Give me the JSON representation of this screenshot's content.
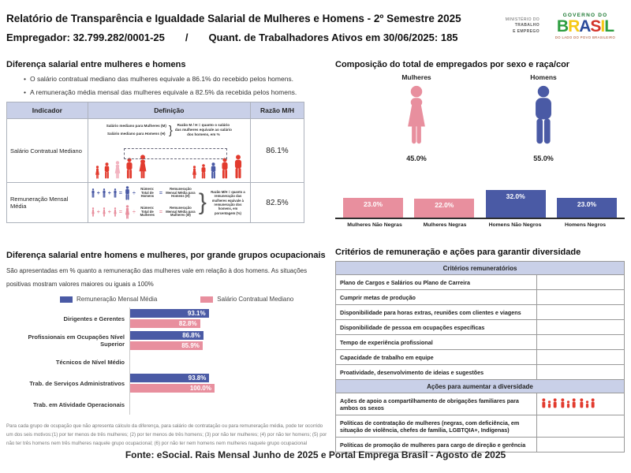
{
  "header": {
    "title": "Relatório de Transparência e Igualdade Salarial de Mulheres e Homens - 2º Semestre 2025",
    "employer": "Empregador: 32.799.282/0001-25",
    "slash": "/",
    "active_workers": "Quant. de Trabalhadores Ativos em 30/06/2025: 185",
    "ministry_lines": [
      "MINISTÉRIO DO",
      "TRABALHO",
      "E EMPREGO"
    ],
    "gov": {
      "top": "GOVERNO DO",
      "name": "BRASIL",
      "tagline": "DO LADO DO POVO BRASILEIRO",
      "letter_colors": [
        "#2E9E41",
        "#F6C915",
        "#2B4B9B",
        "#D3342A",
        "#F6C915",
        "#2E9E41"
      ]
    }
  },
  "salary_gap": {
    "title": "Diferença salarial entre mulheres e homens",
    "bullets": [
      "O salário contratual mediano das mulheres equivale a 86.1% do recebido pelos homens.",
      "A remuneração média mensal das mulheres equivale a 82.5% da recebida pelos homens."
    ],
    "table": {
      "headers": [
        "Indicador",
        "Definição",
        "Razão M/H"
      ],
      "brace": "}",
      "operators": {
        "plus": "+",
        "equals": "=",
        "divide": "÷"
      },
      "row1": {
        "indicator": "Salário Contratual Mediano",
        "label_women": "Salário mediano para Mulheres (M)",
        "label_men": "Salário mediano para Homens (H)",
        "note": "Razão M / H = quanto o salário das mulheres equivale ao salário dos homens, em %",
        "ratio": "86.1%"
      },
      "row2": {
        "indicator": "Remuneração Mensal Média",
        "men_divisor": "Número: Total de Homens",
        "men_result": "Remuneração Mensal Média para Homens (H)",
        "women_divisor": "Número: Total de Mulheres",
        "women_result": "Remuneração Mensal Média para Mulheres (M)",
        "note": "Razão M/H = quanto a remuneração das mulheres equivale à remuneração dos homens, em porcentagem (%)",
        "ratio": "82.5%"
      }
    }
  },
  "occupation": {
    "title": "Diferença salarial entre homens e mulheres, por grande grupos ocupacionais",
    "description": "São apresentadas em % quanto a remuneração das mulheres vale em relação à dos homens. As situações positivas mostram valores maiores ou iguais a 100%",
    "footnote": "Para cada grupo de ocupação que não apresenta cálculo da diferença, para salário de contratação ou para remuneração média, pode ter ocorrido um dos seis motivos:(1) por ter menos de três mulheres; (2) por ter menos de três homens; (3) por não ter mulheres; (4) por não ter homens; (5) por não ter três homens nem três mulheres naquele grupo ocupacional; (6) por não ter nem homens nem mulheres naquele grupo ocupacional"
  },
  "criteria": {
    "title": "Critérios de remuneração e ações para garantir diversidade",
    "sections": [
      {
        "header": "Critérios remuneratórios",
        "rows": [
          {
            "label": "Plano de Cargos e Salários ou Plano de Carreira"
          },
          {
            "label": "Cumprir metas de produção"
          },
          {
            "label": "Disponibilidade para horas extras, reuniões com clientes e viagens"
          },
          {
            "label": "Disponibilidade de pessoa em ocupações específicas"
          },
          {
            "label": "Tempo de experiência profissional"
          },
          {
            "label": "Capacidade de trabalho em equipe"
          },
          {
            "label": "Proatividade, desenvolvimento de ideias e sugestões"
          }
        ]
      },
      {
        "header": "Ações para aumentar a diversidade",
        "rows": [
          {
            "label": "Ações de apoio a compartilhamento de obrigações familiares para ambos os sexos",
            "icons": 3
          },
          {
            "label": "Políticas de contratação de mulheres (negras, com deficiência, em situação de violência, chefes de família, LGBTQIA+, Indígenas)"
          },
          {
            "label": "Políticas de promoção de mulheres para cargo de direção e gerência"
          }
        ]
      }
    ]
  },
  "footer": "Fonte: eSocial. Rais Mensal Junho de 2025 e Portal Emprega Brasil - Agosto de 2025",
  "colors": {
    "red": "#E23B2E",
    "pink": "#E88F9E",
    "pink_light": "#F2B3C0",
    "blue": "#4A5AA5",
    "header_bg": "#C9D0E8"
  },
  "chart_data": [
    {
      "type": "pictogram",
      "title": "Composição do total de empregados por sexo e raça/cor",
      "categories": [
        "Mulheres",
        "Homens"
      ],
      "values": [
        45.0,
        55.0
      ],
      "unit": "%",
      "colors": [
        "#E88F9E",
        "#4A5AA5"
      ]
    },
    {
      "type": "bar",
      "categories": [
        "Mulheres Não Negras",
        "Mulheres Negras",
        "Homens Não Negros",
        "Homens Negros"
      ],
      "values": [
        23.0,
        22.0,
        32.0,
        23.0
      ],
      "unit": "%",
      "colors": [
        "#E88F9E",
        "#E88F9E",
        "#4A5AA5",
        "#4A5AA5"
      ],
      "value_labels_inside": true,
      "legend_position": "none"
    },
    {
      "type": "bar-horizontal-grouped",
      "title": "Diferença salarial entre homens e mulheres, por grande grupos ocupacionais",
      "categories": [
        "Dirigentes e Gerentes",
        "Profissionais em Ocupações Nível Superior",
        "Técnicos de Nível Médio",
        "Trab. de Serviços Administrativos",
        "Trab. em Atividade Operacionais"
      ],
      "series": [
        {
          "name": "Remuneração Mensal Média",
          "color": "#4A5AA5",
          "values": [
            93.1,
            86.8,
            null,
            93.8,
            null
          ]
        },
        {
          "name": "Salário Contratual Mediano",
          "color": "#E88F9E",
          "values": [
            82.8,
            85.9,
            null,
            100.0,
            null
          ]
        }
      ],
      "unit": "%",
      "legend_position": "top"
    }
  ]
}
